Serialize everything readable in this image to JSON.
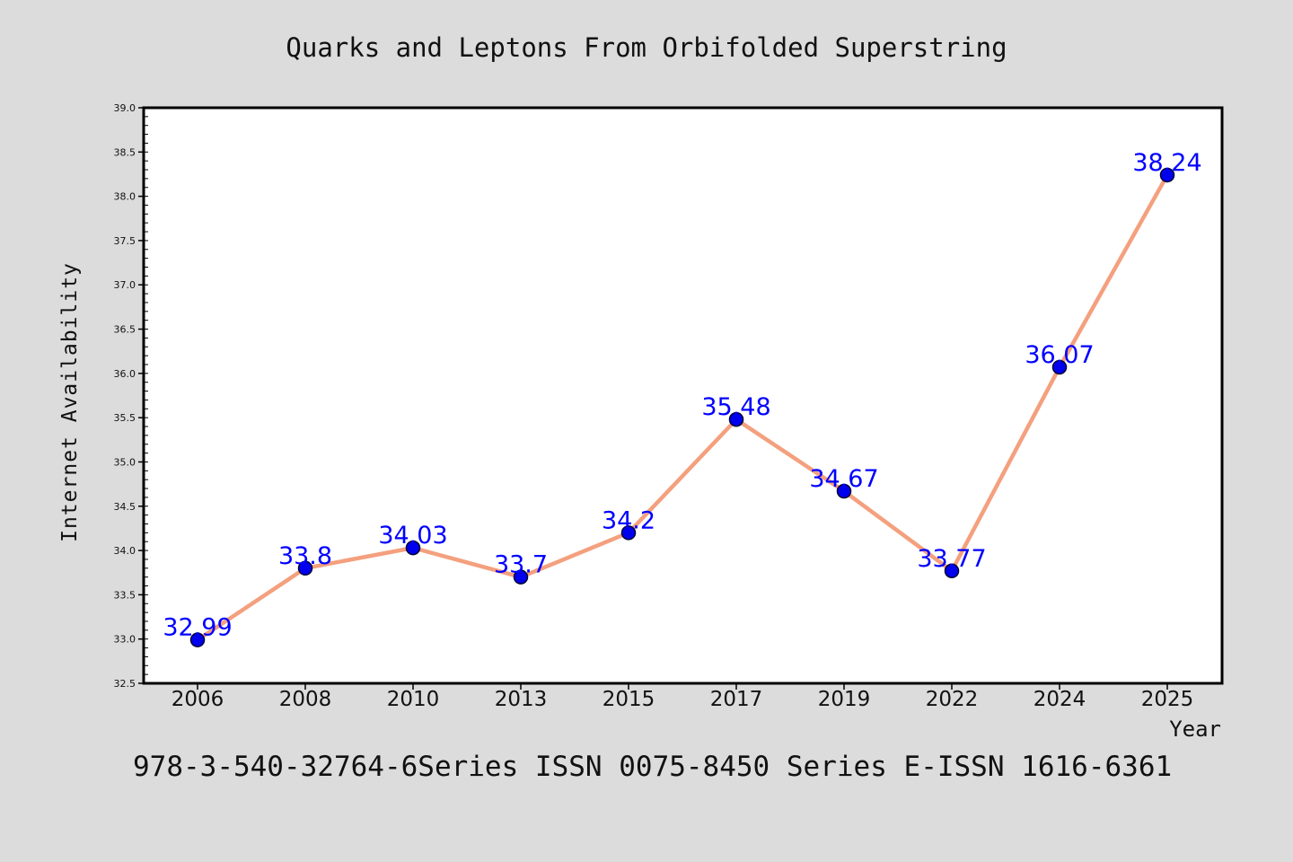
{
  "chart_data": {
    "type": "line",
    "title": "Quarks and Leptons From Orbifolded Superstring",
    "xlabel": "Year",
    "ylabel": "Internet Availability",
    "categories": [
      "2006",
      "2008",
      "2010",
      "2013",
      "2015",
      "2017",
      "2019",
      "2022",
      "2024",
      "2025"
    ],
    "values": [
      32.99,
      33.8,
      34.03,
      33.7,
      34.2,
      35.48,
      34.67,
      33.77,
      36.07,
      38.24
    ],
    "data_labels": [
      "32.99",
      "33.8",
      "34.03",
      "33.7",
      "34.2",
      "35.48",
      "34.67",
      "33.77",
      "36.07",
      "38.24"
    ],
    "ylim": [
      32.5,
      39.0
    ],
    "yticks": [
      "32.5",
      "33.0",
      "33.5",
      "34.0",
      "34.5",
      "35.0",
      "35.5",
      "36.0",
      "36.5",
      "37.0",
      "37.5",
      "38.0",
      "38.5",
      "39.0"
    ],
    "grid": false,
    "legend": "none",
    "colors": {
      "line": "#f4a07e",
      "marker": "#0000ee",
      "marker_edge": "#000033",
      "label": "#0000ff",
      "background": "#dcdcdc",
      "plot_background": "#ffffff"
    }
  },
  "footer": "978-3-540-32764-6Series ISSN 0075-8450 Series E-ISSN 1616-6361"
}
